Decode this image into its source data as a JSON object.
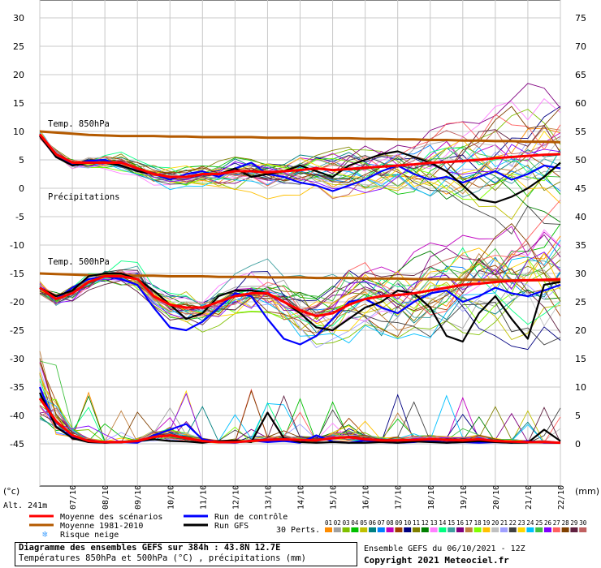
{
  "chart_data": {
    "type": "line",
    "left_axis": {
      "unit": "(°c)",
      "ticks": [
        30,
        25,
        20,
        15,
        10,
        5,
        0,
        -5,
        -10,
        -15,
        -20,
        -25,
        -30,
        -35,
        -40,
        -45
      ],
      "range": [
        -45,
        30
      ]
    },
    "right_axis": {
      "unit": "(mm)",
      "ticks": [
        75,
        70,
        65,
        60,
        55,
        50,
        45,
        40,
        35,
        30,
        25,
        20,
        15,
        10,
        5,
        0
      ],
      "range": [
        0,
        75
      ]
    },
    "x_categories": [
      "07/10",
      "08/10",
      "09/10",
      "10/10",
      "11/10",
      "12/10",
      "13/10",
      "14/10",
      "15/10",
      "16/10",
      "17/10",
      "18/10",
      "19/10",
      "20/10",
      "21/10",
      "22/10"
    ],
    "altitude": "Alt. 241m",
    "panel_labels": {
      "t850": "Temp. 850hPa",
      "precip": "Précipitations",
      "t500": "Temp. 500hPa"
    },
    "grid": true,
    "series": [
      {
        "name": "Moyenne des scénarios",
        "color": "#ff0000",
        "t850": [
          9.5,
          6,
          4.5,
          4.5,
          4.5,
          4.5,
          3.5,
          2.5,
          2,
          2,
          2.5,
          2.5,
          3,
          3,
          2.8,
          3,
          3.2,
          3.5,
          3.2,
          3.4,
          3.6,
          3.8,
          4,
          4.2,
          4.5,
          4.6,
          4.8,
          5,
          5.3,
          5.5,
          5.7,
          5.9,
          6
        ],
        "t500": [
          -17.5,
          -19.5,
          -18.5,
          -16.5,
          -15.5,
          -15.5,
          -16,
          -19,
          -20.5,
          -21,
          -21,
          -20,
          -19,
          -18.5,
          -18.5,
          -20,
          -21.5,
          -22.5,
          -22,
          -20.5,
          -19.5,
          -19,
          -18.8,
          -18.5,
          -18,
          -17.5,
          -17,
          -16.8,
          -16.5,
          -16.3,
          -16.2,
          -16.1,
          -16
        ],
        "precip": [
          8,
          4,
          1.5,
          0.5,
          0.3,
          0.3,
          0.5,
          1.2,
          1.5,
          1,
          0.5,
          0.3,
          0.3,
          0.5,
          0.7,
          0.8,
          0.7,
          0.6,
          1,
          1.2,
          0.8,
          0.6,
          0.6,
          0.7,
          0.8,
          0.7,
          0.6,
          0.8,
          0.5,
          0.4,
          0.3,
          0.3,
          0.2
        ]
      },
      {
        "name": "Moyenne 1981-2010",
        "color": "#b45a00",
        "t850": [
          10,
          9.8,
          9.6,
          9.4,
          9.3,
          9.2,
          9.2,
          9.2,
          9.1,
          9.1,
          9,
          9,
          9,
          9,
          8.9,
          8.9,
          8.9,
          8.8,
          8.8,
          8.8,
          8.7,
          8.7,
          8.6,
          8.6,
          8.5,
          8.5,
          8.4,
          8.4,
          8.3,
          8.3,
          8.2,
          8.2,
          8.1
        ],
        "t500": [
          -15,
          -15.1,
          -15.2,
          -15.3,
          -15.3,
          -15.3,
          -15.4,
          -15.4,
          -15.5,
          -15.5,
          -15.5,
          -15.6,
          -15.6,
          -15.6,
          -15.7,
          -15.7,
          -15.7,
          -15.8,
          -15.8,
          -15.8,
          -15.9,
          -15.9,
          -15.9,
          -16,
          -16,
          -16,
          -16.1,
          -16.1,
          -16.1,
          -16.2,
          -16.2,
          -16.2,
          -16.3
        ]
      },
      {
        "name": "Run de contrôle",
        "color": "#0000ff",
        "t850": [
          9.2,
          5.5,
          4.2,
          4.8,
          5,
          4,
          3,
          2.5,
          1.5,
          2.5,
          3,
          2,
          3.5,
          4.5,
          2.5,
          2,
          1,
          0.5,
          -0.5,
          0.5,
          1.5,
          3,
          4,
          2.5,
          1.5,
          2,
          1,
          2,
          3,
          1.5,
          2.5,
          4,
          3.5
        ],
        "t500": [
          -17.5,
          -19.5,
          -17.5,
          -16,
          -15.5,
          -16,
          -17,
          -21,
          -24.5,
          -25,
          -23.5,
          -21,
          -18.5,
          -19,
          -23,
          -26.5,
          -27.5,
          -26,
          -23,
          -20,
          -19.5,
          -21,
          -22,
          -20,
          -18.5,
          -18,
          -20,
          -19,
          -17.5,
          -18.5,
          -19,
          -18,
          -17
        ],
        "precip": [
          10,
          3,
          1.2,
          0.3,
          0.2,
          0.3,
          0.2,
          1.5,
          2.5,
          3.5,
          0.8,
          0.3,
          0.2,
          0.6,
          0.3,
          0.5,
          0.2,
          1.5,
          0.4,
          0.2,
          0.6,
          0.3,
          0.2,
          0.3,
          0.6,
          0.2,
          0.3,
          0.2,
          0.3,
          0.2,
          0.5,
          0.2,
          0.2
        ]
      },
      {
        "name": "Run GFS",
        "color": "#000000",
        "t850": [
          9.2,
          5.5,
          4,
          4.5,
          4.5,
          4,
          3,
          2.5,
          2,
          2,
          2.5,
          2.5,
          3.5,
          2,
          2.5,
          3,
          4,
          3,
          2,
          4,
          5,
          6,
          6.5,
          5.5,
          4.5,
          3,
          0.5,
          -2,
          -2.5,
          -1.5,
          0,
          2,
          4.5
        ],
        "t500": [
          -17.5,
          -19,
          -18,
          -15.5,
          -15,
          -15,
          -16,
          -18,
          -20.5,
          -23,
          -22,
          -19,
          -18,
          -18,
          -18.5,
          -20,
          -22,
          -24.5,
          -25,
          -23,
          -21,
          -20,
          -18,
          -18.5,
          -21,
          -26,
          -27,
          -22,
          -19,
          -23,
          -26.5,
          -17,
          -16.5
        ],
        "precip": [
          9,
          3,
          1,
          0.3,
          0.2,
          0.3,
          0.5,
          0.8,
          0.5,
          0.4,
          0.2,
          0.5,
          0.6,
          0.3,
          5.5,
          1,
          0.3,
          0.2,
          0.3,
          0.2,
          0.2,
          0.3,
          0.2,
          0.4,
          0.3,
          0.2,
          0.3,
          0.5,
          0.3,
          0.2,
          0.2,
          2.5,
          0.5
        ]
      }
    ],
    "perturbations": {
      "label": "30 Perts.",
      "numbers": [
        "01",
        "02",
        "03",
        "04",
        "05",
        "06",
        "07",
        "08",
        "09",
        "10",
        "11",
        "12",
        "13",
        "14",
        "15",
        "16",
        "17",
        "18",
        "19",
        "20",
        "21",
        "22",
        "23",
        "24",
        "25",
        "26",
        "27",
        "28",
        "29",
        "30"
      ],
      "colors": [
        "#ff8c00",
        "#a0a0a0",
        "#80c000",
        "#00c000",
        "#c0c000",
        "#008080",
        "#0080ff",
        "#c000c0",
        "#a04000",
        "#000080",
        "#808000",
        "#008000",
        "#ff80ff",
        "#00ff80",
        "#40a0a0",
        "#800080",
        "#c08040",
        "#80ff00",
        "#ffc000",
        "#c0c0c0",
        "#a0a0ff",
        "#404040",
        "#ffd700",
        "#00c0ff",
        "#40c040",
        "#8000ff",
        "#ff6060",
        "#804000",
        "#602040",
        "#c06060"
      ]
    },
    "legend": [
      {
        "name": "Moyenne des scénarios",
        "color": "#ff0000"
      },
      {
        "name": "Run de contrôle",
        "color": "#0000ff"
      },
      {
        "name": "Moyenne 1981-2010",
        "color": "#b45a00"
      },
      {
        "name": "Run GFS",
        "color": "#000000"
      },
      {
        "name": "Risque neige",
        "color": "#4da6ff"
      }
    ]
  },
  "footer": {
    "title": "Diagramme des ensembles GEFS sur 384h : 43.8N 12.7E",
    "subtitle": "Températures 850hPa et 500hPa (°C) , précipitations (mm)",
    "run": "Ensemble GEFS du 06/10/2021 - 12Z",
    "copyright": "Copyright 2021 Meteociel.fr"
  },
  "legend_snow_symbol": "❄"
}
